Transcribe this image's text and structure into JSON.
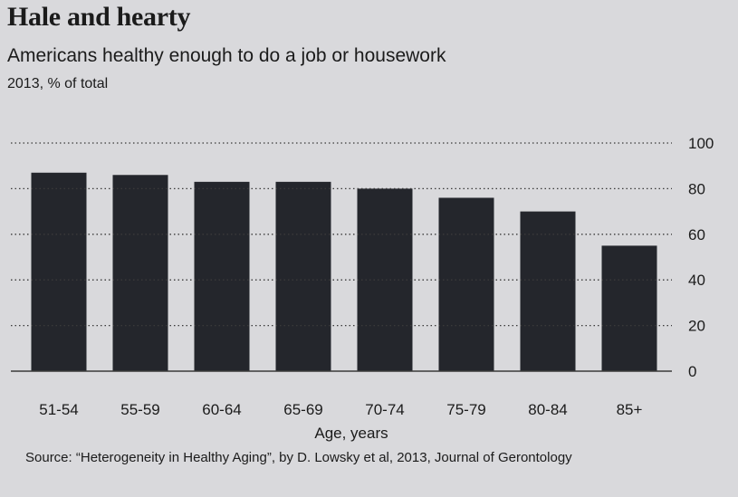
{
  "chart_data": {
    "type": "bar",
    "title": "Hale and hearty",
    "subtitle": "Americans healthy enough to do a job or housework",
    "unit_label": "2013, % of total",
    "categories": [
      "51-54",
      "55-59",
      "60-64",
      "65-69",
      "70-74",
      "75-79",
      "80-84",
      "85+"
    ],
    "values": [
      87,
      86,
      83,
      83,
      80,
      76,
      70,
      55
    ],
    "xlabel": "Age, years",
    "ylabel": "",
    "ylim": [
      0,
      100
    ],
    "yticks": [
      0,
      20,
      40,
      60,
      80,
      100
    ],
    "grid": true,
    "source": "Source: “Heterogeneity in Healthy Aging”, by D. Lowsky et al, 2013, Journal of Gerontology"
  },
  "colors": {
    "bar": "#24262c",
    "grid": "#3a3a3a",
    "text": "#1b1b1b"
  }
}
